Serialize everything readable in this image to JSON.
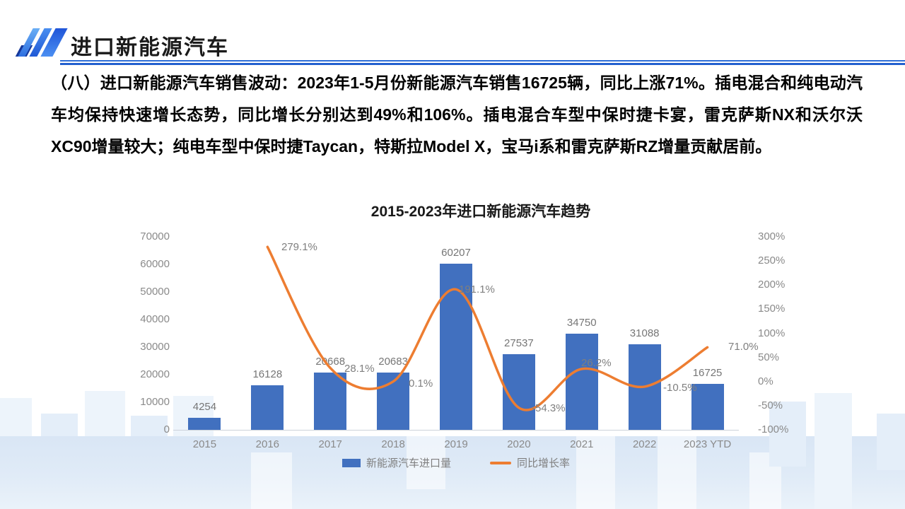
{
  "header": {
    "title": "进口新能源汽车"
  },
  "body_text": {
    "paragraph": "（八）进口新能源汽车销售波动：2023年1-5月份新能源汽车销售16725辆，同比上涨71%。插电混合和纯电动汽车均保持快速增长态势，同比增长分别达到49%和106%。插电混合车型中保时捷卡宴，雷克萨斯NX和沃尔沃XC90增量较大；纯电车型中保时捷Taycan，特斯拉Model X，宝马i系和雷克萨斯RZ增量贡献居前。"
  },
  "chart_data": {
    "type": "bar",
    "subtype": "combo_bar_line",
    "title": "2015-2023年进口新能源汽车趋势",
    "categories": [
      "2015",
      "2016",
      "2017",
      "2018",
      "2019",
      "2020",
      "2021",
      "2022",
      "2023 YTD"
    ],
    "series": [
      {
        "name": "新能源汽车进口量",
        "type": "bar",
        "color": "#4170BF",
        "values": [
          4254,
          16128,
          20668,
          20683,
          60207,
          27537,
          34750,
          31088,
          16725
        ]
      },
      {
        "name": "同比增长率",
        "type": "line",
        "color": "#ED7D31",
        "values": [
          null,
          279.1,
          28.1,
          0.1,
          191.1,
          -54.3,
          26.2,
          -10.5,
          71.0
        ],
        "labels": [
          null,
          "279.1%",
          "28.1%",
          "0.1%",
          "191.1%",
          "-54.3%",
          "26.2%",
          "-10.5%",
          "71.0%"
        ]
      }
    ],
    "left_axis": {
      "ticks": [
        "0",
        "10000",
        "20000",
        "30000",
        "40000",
        "50000",
        "60000",
        "70000"
      ],
      "min": 0,
      "max": 70000
    },
    "right_axis": {
      "ticks": [
        "-100%",
        "-50%",
        "0%",
        "50%",
        "100%",
        "150%",
        "200%",
        "250%",
        "300%"
      ],
      "min": -100,
      "max": 300
    },
    "legend": [
      "新能源汽车进口量",
      "同比增长率"
    ],
    "grid": "off",
    "legend_position": "bottom"
  }
}
